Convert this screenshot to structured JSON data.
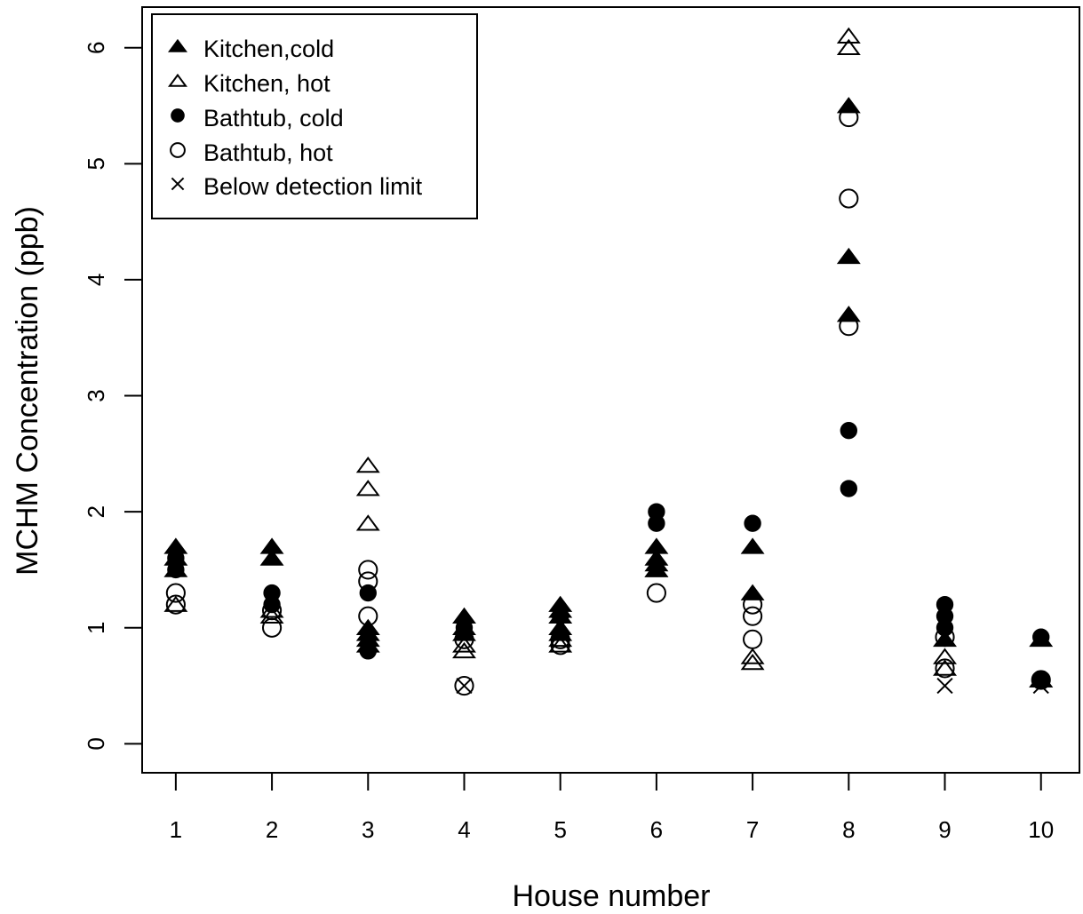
{
  "chart_data": {
    "type": "scatter",
    "xlabel": "House number",
    "ylabel": "MCHM Concentration (ppb)",
    "xlim": [
      0.65,
      10.4
    ],
    "ylim": [
      -0.25,
      6.35
    ],
    "x_ticks": [
      1,
      2,
      3,
      4,
      5,
      6,
      7,
      8,
      9,
      10
    ],
    "x_tick_labels": [
      "1",
      "2",
      "3",
      "4",
      "5",
      "6",
      "7",
      "8",
      "9",
      "10"
    ],
    "y_ticks": [
      0,
      1,
      2,
      3,
      4,
      5,
      6
    ],
    "y_tick_labels": [
      "0",
      "1",
      "2",
      "3",
      "4",
      "5",
      "6"
    ],
    "grid": false,
    "legend_position": "top-left",
    "series": [
      {
        "name": "Kitchen,cold",
        "marker": "filled-triangle",
        "x": [
          1,
          1,
          1,
          2,
          2,
          3,
          3,
          3,
          3,
          4,
          4,
          4,
          5,
          5,
          5,
          5,
          5,
          6,
          6,
          6,
          6,
          7,
          7,
          8,
          8,
          8,
          9,
          10,
          10
        ],
        "y": [
          1.7,
          1.6,
          1.5,
          1.7,
          1.6,
          1.0,
          0.95,
          0.9,
          0.85,
          1.1,
          1.0,
          0.95,
          1.2,
          1.15,
          1.1,
          1.0,
          0.95,
          1.7,
          1.6,
          1.55,
          1.5,
          1.7,
          1.3,
          5.5,
          4.2,
          3.7,
          0.9,
          0.9,
          0.55
        ]
      },
      {
        "name": "Kitchen, hot",
        "marker": "open-triangle",
        "x": [
          1,
          2,
          2,
          3,
          3,
          3,
          4,
          4,
          5,
          5,
          6,
          7,
          7,
          8,
          8,
          9,
          9,
          10
        ],
        "y": [
          1.2,
          1.15,
          1.1,
          2.4,
          2.2,
          1.9,
          0.85,
          0.8,
          0.9,
          0.85,
          1.5,
          0.75,
          0.7,
          6.1,
          6.0,
          0.75,
          0.65,
          0.55
        ]
      },
      {
        "name": "Bathtub, cold",
        "marker": "filled-circle",
        "x": [
          1,
          1,
          2,
          2,
          3,
          3,
          4,
          5,
          6,
          6,
          7,
          8,
          8,
          9,
          9,
          9,
          10,
          10
        ],
        "y": [
          1.6,
          1.5,
          1.3,
          1.2,
          1.3,
          0.8,
          1.0,
          1.1,
          2.0,
          1.9,
          1.9,
          2.7,
          2.2,
          1.2,
          1.1,
          1.0,
          0.92,
          0.55
        ]
      },
      {
        "name": "Bathtub, hot",
        "marker": "open-circle",
        "x": [
          1,
          1,
          2,
          2,
          3,
          3,
          3,
          4,
          4,
          5,
          5,
          6,
          7,
          7,
          7,
          8,
          8,
          8,
          9,
          9,
          10
        ],
        "y": [
          1.3,
          1.2,
          1.15,
          1.0,
          1.5,
          1.4,
          1.1,
          0.9,
          0.5,
          0.9,
          0.85,
          1.3,
          1.2,
          1.1,
          0.9,
          5.4,
          4.7,
          3.6,
          0.92,
          0.65,
          0.55
        ]
      },
      {
        "name": "Below detection limit",
        "marker": "cross",
        "x": [
          4,
          9,
          10
        ],
        "y": [
          0.5,
          0.5,
          0.5
        ]
      }
    ]
  }
}
